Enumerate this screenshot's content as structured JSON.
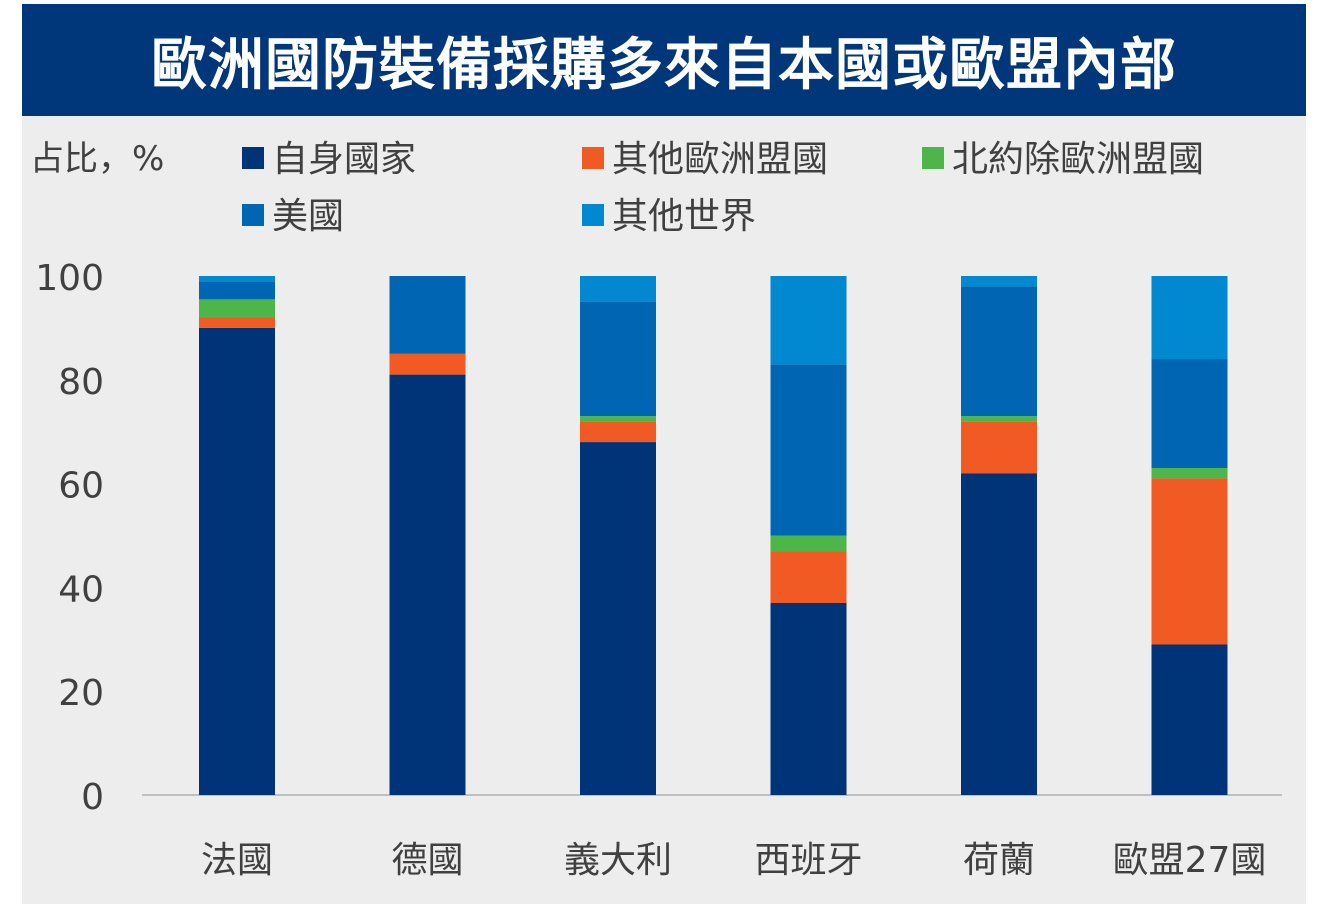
{
  "chart_data": {
    "type": "bar",
    "stacked": true,
    "title": "歐洲國防裝備採購多來自本國或歐盟內部",
    "ylabel": "占比，%",
    "xlabel": "",
    "ylim": [
      0,
      100
    ],
    "yticks": [
      0,
      20,
      40,
      60,
      80,
      100
    ],
    "grid": false,
    "legend_position": "top",
    "categories": [
      "法國",
      "德國",
      "義大利",
      "西班牙",
      "荷蘭",
      "歐盟27國"
    ],
    "series": [
      {
        "name": "自身國家",
        "color": "#003478",
        "values": [
          90,
          81,
          68,
          37,
          62,
          29
        ]
      },
      {
        "name": "其他歐洲盟國",
        "color": "#f15a22",
        "values": [
          2,
          4,
          4,
          10,
          10,
          32
        ]
      },
      {
        "name": "北約除歐洲盟國",
        "color": "#4cb648",
        "values": [
          3.5,
          0,
          1,
          3,
          1,
          2
        ]
      },
      {
        "name": "美國",
        "color": "#0066b3",
        "values": [
          3.5,
          15,
          22,
          33,
          25,
          21
        ]
      },
      {
        "name": "其他世界",
        "color": "#0088d1",
        "values": [
          1,
          0,
          5,
          17,
          2,
          16
        ]
      }
    ]
  }
}
